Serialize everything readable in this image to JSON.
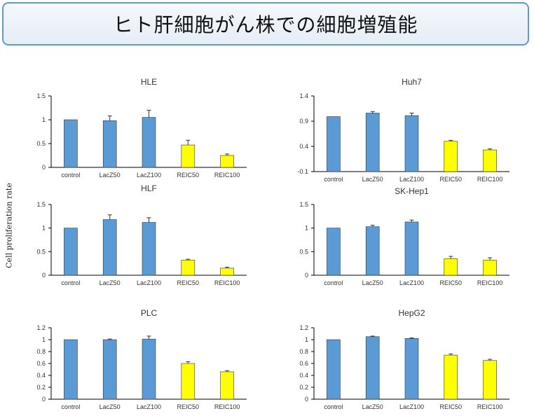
{
  "title": "ヒト肝細胞がん株での細胞増殖能",
  "ylabel": "Cell proliferation rate",
  "colors": {
    "lacz": "#5b9bd5",
    "reic": "#ffff00",
    "bar_stroke": "#333333",
    "axis": "#000000"
  },
  "chart_data": [
    {
      "type": "bar",
      "title": "HLE",
      "categories": [
        "control",
        "LacZ50",
        "LacZ100",
        "REIC50",
        "REIC100"
      ],
      "values": [
        1.0,
        0.98,
        1.05,
        0.47,
        0.25
      ],
      "errors": [
        0.0,
        0.1,
        0.15,
        0.1,
        0.03
      ],
      "ylim": [
        0,
        1.5
      ],
      "yticks": [
        "0",
        "0.5",
        "1",
        "1.5"
      ],
      "ytick_values": [
        0,
        0.5,
        1,
        1.5
      ]
    },
    {
      "type": "bar",
      "title": "Huh7",
      "categories": [
        "control",
        "LacZ50",
        "LacZ100",
        "REIC50",
        "REIC100"
      ],
      "values": [
        0.99,
        1.06,
        1.01,
        0.5,
        0.33
      ],
      "errors": [
        0.0,
        0.03,
        0.05,
        0.02,
        0.02
      ],
      "ylim": [
        -0.1,
        1.4
      ],
      "yticks": [
        "-0.1",
        "0.4",
        "0.9",
        "1.4"
      ],
      "ytick_values": [
        -0.1,
        0.4,
        0.9,
        1.4
      ]
    },
    {
      "type": "bar",
      "title": "HLF",
      "categories": [
        "control",
        "LacZ50",
        "LacZ100",
        "REIC50",
        "REIC100"
      ],
      "values": [
        1.0,
        1.18,
        1.12,
        0.32,
        0.15
      ],
      "errors": [
        0.0,
        0.1,
        0.1,
        0.02,
        0.02
      ],
      "ylim": [
        0,
        1.5
      ],
      "yticks": [
        "0",
        "0.5",
        "1",
        "1.5"
      ],
      "ytick_values": [
        0,
        0.5,
        1,
        1.5
      ]
    },
    {
      "type": "bar",
      "title": "SK-Hep1",
      "categories": [
        "control",
        "LacZ50",
        "LacZ100",
        "REIC50",
        "REIC100"
      ],
      "values": [
        1.0,
        1.03,
        1.13,
        0.35,
        0.32
      ],
      "errors": [
        0.0,
        0.03,
        0.04,
        0.05,
        0.05
      ],
      "ylim": [
        0,
        1.5
      ],
      "yticks": [
        "0",
        "0.5",
        "1",
        "1.5"
      ],
      "ytick_values": [
        0,
        0.5,
        1,
        1.5
      ]
    },
    {
      "type": "bar",
      "title": "PLC",
      "categories": [
        "control",
        "LacZ50",
        "LacZ100",
        "REIC50",
        "REIC100"
      ],
      "values": [
        1.0,
        1.0,
        1.01,
        0.6,
        0.46
      ],
      "errors": [
        0.0,
        0.01,
        0.05,
        0.03,
        0.02
      ],
      "ylim": [
        0,
        1.2
      ],
      "yticks": [
        "0",
        "0.2",
        "0.4",
        "0.6",
        "0.8",
        "1",
        "1.2"
      ],
      "ytick_values": [
        0,
        0.2,
        0.4,
        0.6,
        0.8,
        1.0,
        1.2
      ]
    },
    {
      "type": "bar",
      "title": "HepG2",
      "categories": [
        "control",
        "LacZ50",
        "LacZ100",
        "REIC50",
        "REIC100"
      ],
      "values": [
        1.0,
        1.05,
        1.02,
        0.74,
        0.65
      ],
      "errors": [
        0.0,
        0.01,
        0.01,
        0.02,
        0.02
      ],
      "ylim": [
        0,
        1.2
      ],
      "yticks": [
        "0",
        "0.2",
        "0.4",
        "0.6",
        "0.8",
        "1",
        "1.2"
      ],
      "ytick_values": [
        0,
        0.2,
        0.4,
        0.6,
        0.8,
        1.0,
        1.2
      ]
    }
  ]
}
